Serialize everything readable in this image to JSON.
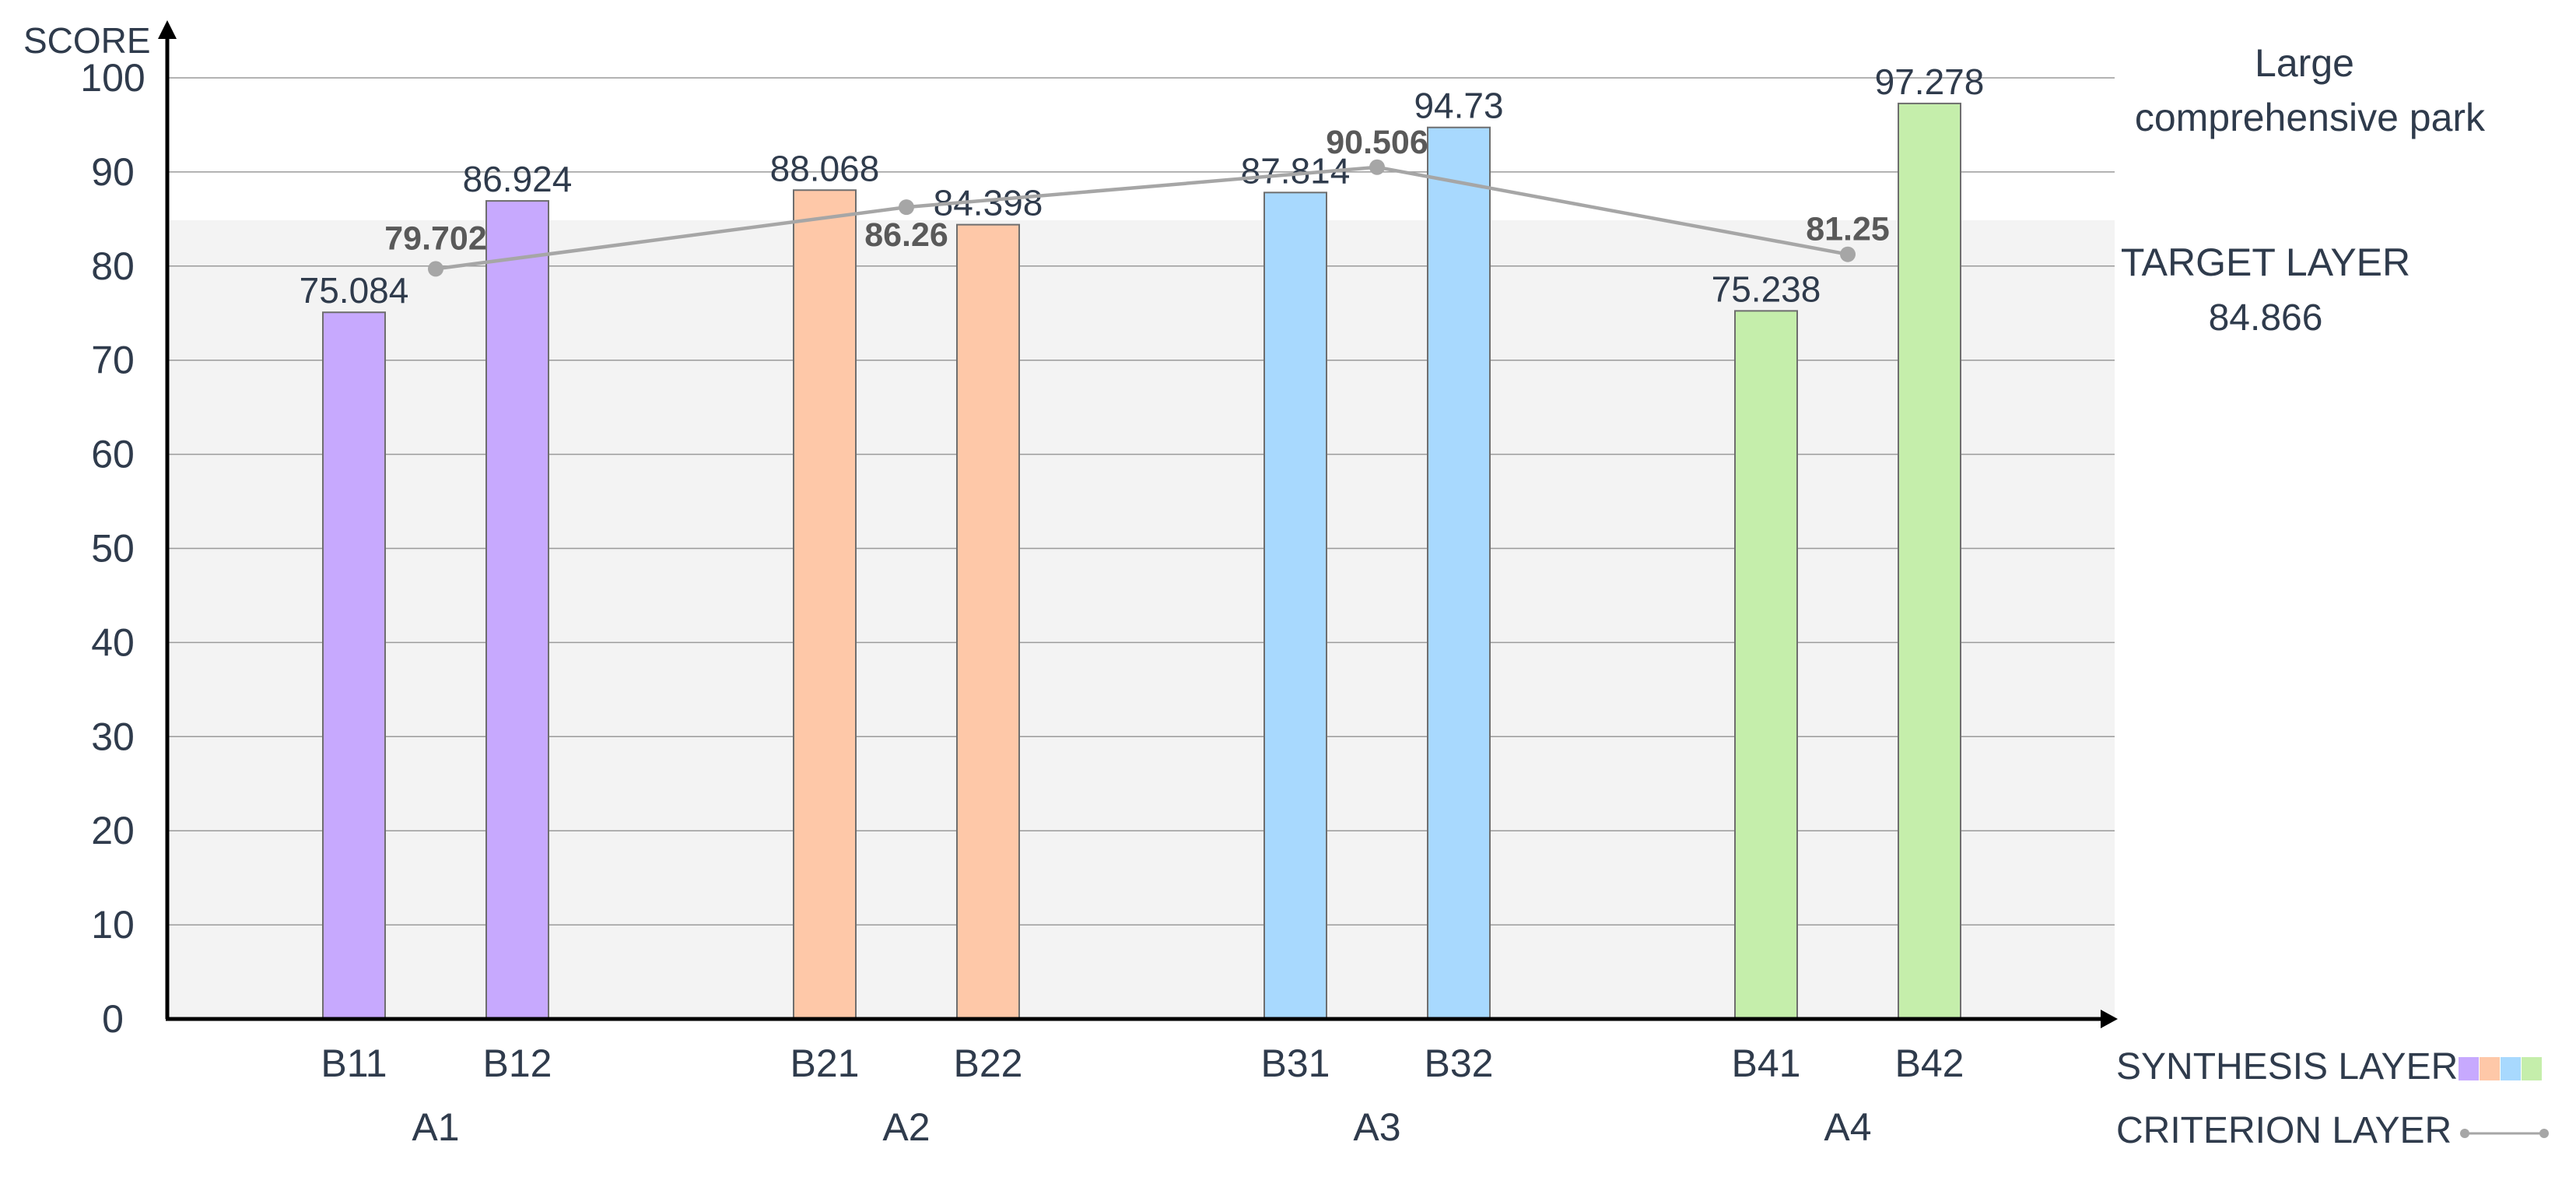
{
  "chart_data": {
    "type": "bar",
    "ylabel": "SCORE",
    "ylim": [
      0,
      100
    ],
    "yticks": [
      0,
      10,
      20,
      30,
      40,
      50,
      60,
      70,
      80,
      90,
      100
    ],
    "grid": true,
    "categories": [
      "B11",
      "B12",
      "B21",
      "B22",
      "B31",
      "B32",
      "B41",
      "B42"
    ],
    "groups": [
      {
        "label": "A1",
        "members": [
          "B11",
          "B12"
        ],
        "color": "#c7a9fe"
      },
      {
        "label": "A2",
        "members": [
          "B21",
          "B22"
        ],
        "color": "#fec8a8"
      },
      {
        "label": "A3",
        "members": [
          "B31",
          "B32"
        ],
        "color": "#a8d9fe"
      },
      {
        "label": "A4",
        "members": [
          "B41",
          "B42"
        ],
        "color": "#c5eeab"
      }
    ],
    "series": [
      {
        "name": "SYNTHESIS LAYER",
        "type": "bar",
        "values": [
          75.084,
          86.924,
          88.068,
          84.398,
          87.814,
          94.73,
          75.238,
          97.278
        ]
      },
      {
        "name": "CRITERION LAYER",
        "type": "line",
        "x": [
          "A1",
          "A2",
          "A3",
          "A4"
        ],
        "values": [
          79.702,
          86.26,
          90.506,
          81.25
        ],
        "color": "#a6a6a6"
      }
    ],
    "target": {
      "title": "Large comprehensive park",
      "label": "TARGET LAYER",
      "value": 84.866,
      "band_color": "#f3f3f3"
    },
    "legend": {
      "placement": "bottom-right",
      "entries": [
        "SYNTHESIS LAYER",
        "CRITERION LAYER"
      ]
    }
  }
}
